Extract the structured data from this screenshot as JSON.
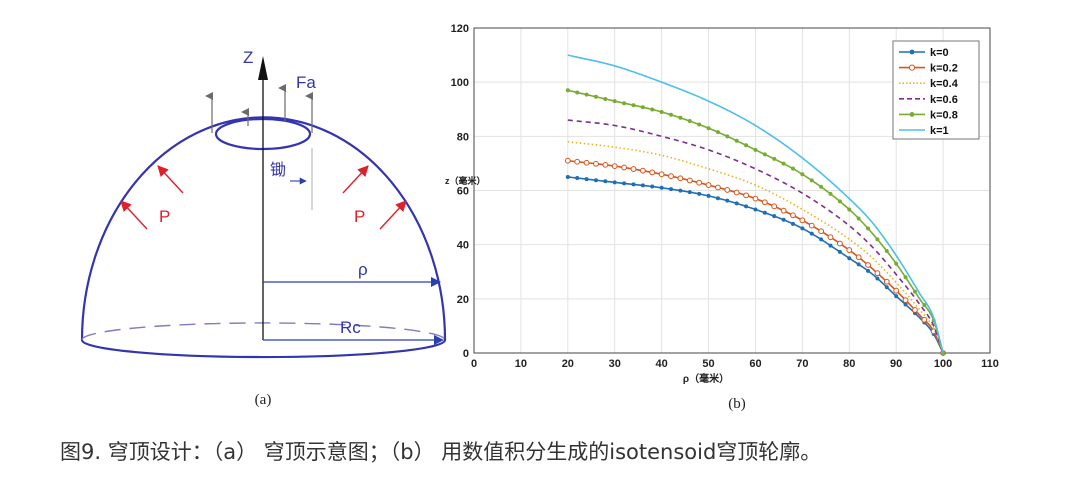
{
  "diagram": {
    "labels": {
      "z_axis": "Z",
      "force": "Fa",
      "center": "锄",
      "pressure_left": "P",
      "pressure_right": "P",
      "radius": "ρ",
      "base_radius": "Rc"
    },
    "sublabel": "(a)",
    "colors": {
      "outline": "#3434b0",
      "arrows_up": "#6b6b6b",
      "pressure": "#e0202a",
      "dims": "#2a3fb0",
      "axis": "#111111"
    }
  },
  "plot_sublabel": "(b)",
  "caption": "图9. 穹顶设计：（a） 穹顶示意图；（b） 用数值积分生成的isotensoid穹顶轮廓。",
  "chart_data": {
    "type": "line",
    "xlabel": "ρ（毫米）",
    "ylabel": "z（毫米）",
    "xlim": [
      0,
      110
    ],
    "ylim": [
      0,
      120
    ],
    "xticks": [
      0,
      10,
      20,
      30,
      40,
      50,
      60,
      70,
      80,
      90,
      100,
      110
    ],
    "yticks": [
      0,
      20,
      40,
      60,
      80,
      100,
      120
    ],
    "grid": true,
    "legend_position": "top-right",
    "x": [
      20,
      30,
      40,
      50,
      60,
      70,
      80,
      85,
      90,
      95,
      98,
      100
    ],
    "series": [
      {
        "name": "k=0",
        "color": "#1f6fb2",
        "style": "dot-solid",
        "values": [
          65,
          63,
          61,
          58,
          53,
          46,
          35,
          29,
          21,
          13,
          7,
          0
        ]
      },
      {
        "name": "k=0.2",
        "color": "#d9541a",
        "style": "circle-solid",
        "values": [
          71,
          69,
          66,
          62,
          57,
          49,
          38,
          31,
          23,
          14,
          8,
          0
        ]
      },
      {
        "name": "k=0.4",
        "color": "#edb120",
        "style": "dotted",
        "values": [
          78,
          76,
          73,
          68,
          62,
          53,
          42,
          35,
          26,
          16,
          9,
          0
        ]
      },
      {
        "name": "k=0.6",
        "color": "#7e2f8e",
        "style": "dashed",
        "values": [
          86,
          84,
          80,
          75,
          68,
          59,
          47,
          39,
          29,
          18,
          10,
          0
        ]
      },
      {
        "name": "k=0.8",
        "color": "#77ac30",
        "style": "dot-solid",
        "values": [
          97,
          93,
          89,
          83,
          75,
          66,
          53,
          44,
          33,
          20,
          12,
          0
        ]
      },
      {
        "name": "k=1",
        "color": "#4dbeee",
        "style": "solid",
        "values": [
          110,
          106,
          100,
          93,
          84,
          72,
          57,
          48,
          36,
          22,
          13,
          0
        ]
      }
    ]
  }
}
